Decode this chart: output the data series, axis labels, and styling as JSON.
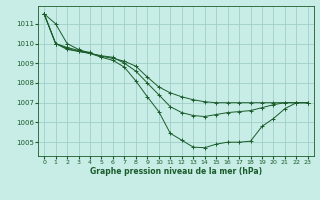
{
  "title": "Graphe pression niveau de la mer (hPa)",
  "background_color": "#c8ece6",
  "grid_color": "#a0d0c8",
  "line_color": "#1a5c2a",
  "xlim": [
    -0.5,
    23.5
  ],
  "ylim": [
    1004.3,
    1011.9
  ],
  "yticks": [
    1005,
    1006,
    1007,
    1008,
    1009,
    1010,
    1011
  ],
  "xticks": [
    0,
    1,
    2,
    3,
    4,
    5,
    6,
    7,
    8,
    9,
    10,
    11,
    12,
    13,
    14,
    15,
    16,
    17,
    18,
    19,
    20,
    21,
    22,
    23
  ],
  "series": [
    {
      "x": [
        0,
        1,
        2,
        3,
        4,
        5,
        6,
        7,
        8,
        9,
        10,
        11,
        12,
        13,
        14,
        15,
        16,
        17,
        18,
        19,
        20,
        21,
        22,
        23
      ],
      "y": [
        1011.5,
        1011.0,
        1010.0,
        1009.7,
        1009.5,
        1009.3,
        1009.15,
        1008.8,
        1008.1,
        1007.3,
        1006.55,
        1005.45,
        1005.1,
        1004.75,
        1004.72,
        1004.9,
        1005.0,
        1005.0,
        1005.05,
        1005.8,
        1006.2,
        1006.7,
        1007.0,
        1007.0
      ]
    },
    {
      "x": [
        0,
        1,
        2,
        3,
        4,
        5,
        6,
        7,
        8,
        9,
        10,
        11,
        12,
        13,
        14,
        15,
        16,
        17,
        18,
        19,
        20,
        21,
        22,
        23
      ],
      "y": [
        1011.5,
        1010.0,
        1009.7,
        1009.6,
        1009.5,
        1009.35,
        1009.25,
        1009.1,
        1008.85,
        1008.3,
        1007.8,
        1007.5,
        1007.3,
        1007.15,
        1007.05,
        1007.0,
        1007.0,
        1007.0,
        1007.0,
        1007.0,
        1007.0,
        1007.0,
        1007.0,
        1007.0
      ]
    },
    {
      "x": [
        0,
        1,
        2,
        3,
        4,
        5,
        6,
        7,
        8,
        9,
        10,
        11,
        12,
        13,
        14,
        15,
        16,
        17,
        18,
        19,
        20,
        21,
        22,
        23
      ],
      "y": [
        1011.5,
        1010.0,
        1009.75,
        1009.6,
        1009.5,
        1009.38,
        1009.3,
        1009.0,
        1008.6,
        1008.0,
        1007.4,
        1006.8,
        1006.5,
        1006.35,
        1006.3,
        1006.4,
        1006.5,
        1006.55,
        1006.6,
        1006.75,
        1006.9,
        1007.0,
        1007.0,
        1007.0
      ]
    },
    {
      "x": [
        0,
        1,
        2,
        3,
        4
      ],
      "y": [
        1011.5,
        1010.0,
        1009.8,
        1009.65,
        1009.55
      ]
    }
  ]
}
